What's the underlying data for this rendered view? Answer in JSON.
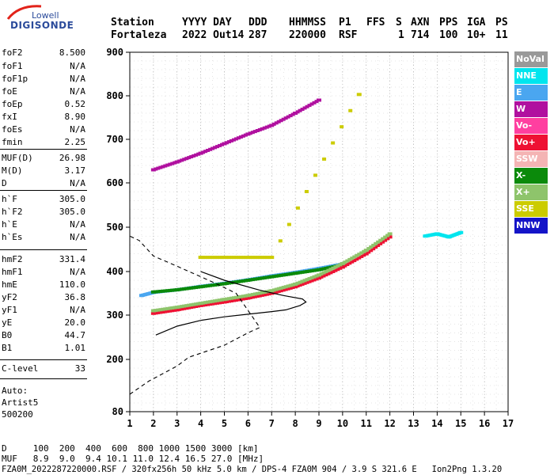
{
  "logo": {
    "top": "Lowell",
    "main": "DIGISONDE"
  },
  "header": {
    "labels": [
      "Station",
      "YYYY DAY",
      "DDD",
      "HHMMSS",
      "P1",
      "FFS",
      "S",
      "AXN",
      "PPS",
      "IGA",
      "PS"
    ],
    "values": [
      "Fortaleza",
      "2022 Out14",
      "287",
      "220000",
      "RSF",
      "1",
      "714",
      "100",
      "10+",
      "11"
    ]
  },
  "params": [
    {
      "k": "foF2",
      "v": "8.500"
    },
    {
      "k": "foF1",
      "v": "N/A"
    },
    {
      "k": "foF1p",
      "v": "N/A"
    },
    {
      "k": "foE",
      "v": "N/A"
    },
    {
      "k": "foEp",
      "v": "0.52"
    },
    {
      "k": "fxI",
      "v": "8.90"
    },
    {
      "k": "foEs",
      "v": "N/A"
    },
    {
      "k": "fmin",
      "v": "2.25"
    },
    {
      "k": "MUF(D)",
      "v": "26.98"
    },
    {
      "k": "M(D)",
      "v": "3.17"
    },
    {
      "k": "D",
      "v": "N/A"
    },
    {
      "k": "h`F",
      "v": "305.0"
    },
    {
      "k": "h`F2",
      "v": "305.0"
    },
    {
      "k": "h`E",
      "v": "N/A"
    },
    {
      "k": "h`Es",
      "v": "N/A"
    },
    {
      "k": "hmF2",
      "v": "331.4"
    },
    {
      "k": "hmF1",
      "v": "N/A"
    },
    {
      "k": "hmE",
      "v": "110.0"
    },
    {
      "k": "yF2",
      "v": "36.8"
    },
    {
      "k": "yF1",
      "v": "N/A"
    },
    {
      "k": "yE",
      "v": "20.0"
    },
    {
      "k": "B0",
      "v": "44.7"
    },
    {
      "k": "B1",
      "v": "1.01"
    },
    {
      "k": "C-level",
      "v": "33"
    }
  ],
  "auto": {
    "line1": "Auto:",
    "line2": "Artist5",
    "line3": "500200"
  },
  "legend": [
    {
      "label": "NoVal",
      "color": "#999999"
    },
    {
      "label": "NNE",
      "color": "#00e5ee"
    },
    {
      "label": "E",
      "color": "#4aa6f0"
    },
    {
      "label": "W",
      "color": "#b0109f"
    },
    {
      "label": "Vo-",
      "color": "#ff3fa0"
    },
    {
      "label": "Vo+",
      "color": "#ee1133"
    },
    {
      "label": "SSW",
      "color": "#f4b4b4"
    },
    {
      "label": "X-",
      "color": "#0b8a0b"
    },
    {
      "label": "X+",
      "color": "#8ec46b"
    },
    {
      "label": "SSE",
      "color": "#cccc00"
    },
    {
      "label": "NNW",
      "color": "#1414c8"
    }
  ],
  "footer": {
    "d_row": "D     100  200  400  600  800 1000 1500 3000 [km]",
    "muf_row": "MUF   8.9  9.0  9.4 10.1 11.0 12.4 16.5 27.0 [MHz]",
    "file_row": "FZA0M_2022287220000.RSF / 320fx256h 50 kHz 5.0 km / DPS-4 FZA0M 904 / 3.9 S 321.6 E   Ion2Png 1.3.20"
  },
  "chart_data": {
    "type": "scatter",
    "x_ticks": [
      "1",
      "2",
      "3",
      "4",
      "5",
      "6",
      "7",
      "8",
      "9",
      "10",
      "11",
      "12",
      "13",
      "14",
      "15",
      "16",
      "17"
    ],
    "y_ticks": [
      "80",
      "200",
      "300",
      "400",
      "500",
      "600",
      "700",
      "800",
      "900"
    ],
    "xlim": [
      1,
      17
    ],
    "grid": true,
    "series": [
      {
        "name": "E",
        "points": [
          [
            1.5,
            345
          ],
          [
            2,
            352
          ],
          [
            3,
            358
          ],
          [
            4,
            366
          ],
          [
            5,
            373
          ],
          [
            6,
            381
          ],
          [
            7,
            390
          ],
          [
            8,
            398
          ],
          [
            9,
            407
          ],
          [
            10,
            417
          ]
        ]
      },
      {
        "name": "X-",
        "points": [
          [
            2,
            353
          ],
          [
            3,
            358
          ],
          [
            4,
            365
          ],
          [
            5,
            372
          ],
          [
            6,
            380
          ],
          [
            7,
            388
          ],
          [
            8,
            396
          ],
          [
            9,
            404
          ],
          [
            10,
            415
          ]
        ]
      },
      {
        "name": "Vo+",
        "points": [
          [
            2,
            304
          ],
          [
            3,
            312
          ],
          [
            4,
            322
          ],
          [
            5,
            330
          ],
          [
            6,
            339
          ],
          [
            7,
            350
          ],
          [
            8,
            365
          ],
          [
            9,
            385
          ],
          [
            10,
            410
          ],
          [
            11,
            440
          ],
          [
            12,
            478
          ]
        ]
      },
      {
        "name": "X+",
        "points": [
          [
            2,
            310
          ],
          [
            3,
            318
          ],
          [
            4,
            327
          ],
          [
            5,
            336
          ],
          [
            6,
            345
          ],
          [
            7,
            356
          ],
          [
            8,
            371
          ],
          [
            9,
            392
          ],
          [
            10,
            418
          ],
          [
            11,
            448
          ],
          [
            12,
            485
          ]
        ]
      },
      {
        "name": "W",
        "points": [
          [
            2,
            630
          ],
          [
            3,
            648
          ],
          [
            4,
            668
          ],
          [
            5,
            690
          ],
          [
            6,
            712
          ],
          [
            7,
            732
          ],
          [
            8,
            760
          ],
          [
            9,
            790
          ]
        ]
      },
      {
        "name": "SSE",
        "points": [
          [
            4,
            432
          ],
          [
            5,
            432
          ],
          [
            6,
            432
          ],
          [
            7,
            432
          ],
          [
            10.7,
            803
          ]
        ]
      },
      {
        "name": "NNE",
        "points": [
          [
            13.5,
            480
          ],
          [
            14,
            485
          ],
          [
            14.5,
            478
          ],
          [
            15,
            488
          ]
        ]
      }
    ],
    "profile_solid": [
      [
        2.1,
        255
      ],
      [
        3,
        275
      ],
      [
        4,
        288
      ],
      [
        5,
        296
      ],
      [
        6,
        302
      ],
      [
        7,
        308
      ],
      [
        7.6,
        312
      ],
      [
        8.2,
        322
      ],
      [
        8.45,
        330
      ],
      [
        8.3,
        337
      ],
      [
        7.5,
        345
      ],
      [
        6.5,
        357
      ],
      [
        5,
        380
      ],
      [
        4,
        400
      ]
    ],
    "profile_dashed": [
      [
        1,
        120
      ],
      [
        1.8,
        150
      ],
      [
        3,
        185
      ],
      [
        3.5,
        205
      ],
      [
        5,
        232
      ],
      [
        6,
        260
      ],
      [
        6.5,
        272
      ],
      [
        5.5,
        350
      ],
      [
        4.5,
        376
      ],
      [
        3,
        412
      ],
      [
        2,
        435
      ],
      [
        1.4,
        470
      ],
      [
        1,
        480
      ]
    ]
  }
}
